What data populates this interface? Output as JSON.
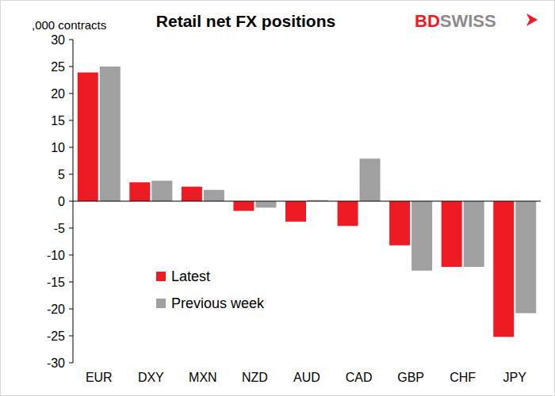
{
  "chart_data": {
    "type": "bar",
    "title": "Retail net FX positions",
    "y_label": ",000 contracts",
    "logo": [
      "BD",
      "SWISS"
    ],
    "categories": [
      "EUR",
      "DXY",
      "MXN",
      "NZD",
      "AUD",
      "CAD",
      "GBP",
      "CHF",
      "JPY"
    ],
    "series": [
      {
        "name": "Latest",
        "color": "#ed1c24",
        "values": [
          23.9,
          3.5,
          2.7,
          -1.8,
          -3.8,
          -4.6,
          -8.2,
          -12.2,
          -25.2
        ]
      },
      {
        "name": "Previous week",
        "color": "#a0a0a0",
        "values": [
          25.0,
          3.8,
          2.1,
          -1.2,
          0.2,
          7.9,
          -12.9,
          -12.2,
          -20.8
        ]
      }
    ],
    "ylim": [
      -30,
      30
    ],
    "yticks": [
      -30,
      -25,
      -20,
      -15,
      -10,
      -5,
      0,
      5,
      10,
      15,
      20,
      25,
      30
    ],
    "grid": false,
    "legend": "left"
  }
}
